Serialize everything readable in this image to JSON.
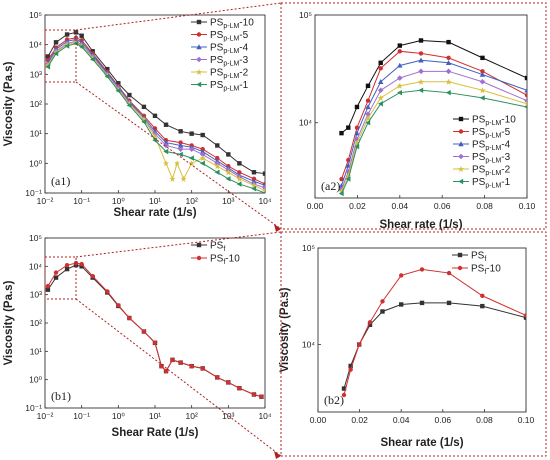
{
  "chart_data": [
    {
      "panel": "a1",
      "panel_label": "(a1)",
      "type": "line",
      "xscale": "log",
      "yscale": "log",
      "xlim": [
        0.01,
        10000
      ],
      "ylim": [
        0.1,
        100000
      ],
      "xlabel": "Shear rate (1/s)",
      "ylabel": "Viscosity (Pa.s)",
      "x_ticks": [
        "10⁻²",
        "10⁻¹",
        "10⁰",
        "10¹",
        "10²",
        "10³",
        "10⁴"
      ],
      "y_ticks": [
        "10⁻¹",
        "10⁰",
        "10¹",
        "10²",
        "10³",
        "10⁴",
        "10⁵"
      ],
      "legend": "top-right",
      "series": [
        {
          "name": "PS",
          "sub": "p-LM",
          "suffix": "-10",
          "color": "#333333",
          "marker": "square",
          "x": [
            0.012,
            0.02,
            0.04,
            0.07,
            0.1,
            0.2,
            0.5,
            1,
            2,
            5,
            10,
            20,
            50,
            100,
            200,
            500,
            1000,
            2000,
            5000,
            10000
          ],
          "y": [
            4000,
            12000,
            22000,
            26000,
            20000,
            6000,
            1500,
            500,
            200,
            80,
            40,
            20,
            12,
            10,
            9,
            4,
            2,
            1,
            0.5,
            0.45
          ]
        },
        {
          "name": "PS",
          "sub": "p-LM",
          "suffix": "-5",
          "color": "#d03030",
          "marker": "circle",
          "x": [
            0.012,
            0.02,
            0.04,
            0.07,
            0.1,
            0.2,
            0.5,
            1,
            2,
            5,
            10,
            20,
            50,
            100,
            200,
            500,
            1000,
            2000,
            5000,
            10000
          ],
          "y": [
            3000,
            8000,
            15000,
            17000,
            14000,
            5000,
            1200,
            400,
            130,
            40,
            15,
            6,
            5,
            4,
            3,
            1.5,
            0.8,
            0.5,
            0.3,
            0.2
          ]
        },
        {
          "name": "PS",
          "sub": "p-LM",
          "suffix": "-4",
          "color": "#4060c0",
          "marker": "triangle",
          "x": [
            0.012,
            0.02,
            0.04,
            0.07,
            0.1,
            0.2,
            0.5,
            1,
            2,
            5,
            10,
            20,
            50,
            100,
            200,
            500,
            1000,
            2000,
            5000,
            10000
          ],
          "y": [
            2500,
            7000,
            13000,
            15000,
            12000,
            4500,
            1100,
            380,
            120,
            35,
            12,
            5,
            4,
            3.5,
            2.5,
            1.2,
            0.7,
            0.4,
            0.25,
            0.18
          ]
        },
        {
          "name": "PS",
          "sub": "p-LM",
          "suffix": "-3",
          "color": "#a070d0",
          "marker": "diamond",
          "x": [
            0.012,
            0.02,
            0.04,
            0.07,
            0.1,
            0.2,
            0.5,
            1,
            2,
            5,
            10,
            20,
            50,
            100,
            200,
            500,
            1000,
            2000,
            5000,
            10000
          ],
          "y": [
            2200,
            6000,
            11000,
            13000,
            10000,
            4000,
            1000,
            350,
            110,
            30,
            10,
            4,
            3,
            3,
            2,
            1,
            0.6,
            0.35,
            0.2,
            0.15
          ]
        },
        {
          "name": "PS",
          "sub": "p-LM",
          "suffix": "-2",
          "color": "#d8c040",
          "marker": "star",
          "x": [
            0.012,
            0.02,
            0.04,
            0.07,
            0.1,
            0.2,
            0.5,
            1,
            2,
            5,
            10,
            20,
            30,
            40,
            60,
            100,
            200,
            500,
            1000,
            2000,
            5000,
            10000
          ],
          "y": [
            2000,
            5500,
            10000,
            12000,
            9000,
            3500,
            900,
            300,
            100,
            30,
            8,
            1,
            0.3,
            1,
            0.3,
            1,
            1.5,
            0.8,
            0.5,
            0.3,
            0.18,
            0.12
          ]
        },
        {
          "name": "PS",
          "sub": "p-LM",
          "suffix": "-1",
          "color": "#2a9060",
          "marker": "triangle-left",
          "x": [
            0.012,
            0.02,
            0.04,
            0.07,
            0.1,
            0.2,
            0.5,
            1,
            2,
            5,
            10,
            20,
            50,
            100,
            200,
            500,
            1000,
            2000,
            5000,
            10000
          ],
          "y": [
            1800,
            5000,
            9000,
            11000,
            8500,
            3200,
            850,
            280,
            90,
            25,
            6,
            2.5,
            2,
            1.5,
            1,
            0.5,
            0.3,
            0.2,
            0.14,
            0.1
          ]
        }
      ]
    },
    {
      "panel": "a2",
      "panel_label": "(a2)",
      "type": "line",
      "xscale": "linear",
      "yscale": "log",
      "xlim": [
        0.0,
        0.1
      ],
      "ylim": [
        2000,
        100000
      ],
      "xlabel": "Shear rate (1/s)",
      "ylabel": "",
      "x_ticks": [
        "0.00",
        "0.02",
        "0.04",
        "0.06",
        "0.08",
        "0.10"
      ],
      "y_ticks": [
        "10⁴",
        "10⁵"
      ],
      "legend": "bottom-right",
      "series": [
        {
          "name": "PS",
          "sub": "p-LM",
          "suffix": "-10",
          "color": "#111111",
          "marker": "square",
          "x": [
            0.0125,
            0.0157,
            0.0198,
            0.025,
            0.031,
            0.04,
            0.05,
            0.063,
            0.079,
            0.1
          ],
          "y": [
            8000,
            9000,
            14000,
            22000,
            36000,
            52000,
            58000,
            56000,
            40000,
            26000
          ]
        },
        {
          "name": "PS",
          "sub": "p-LM",
          "suffix": "-5",
          "color": "#d03030",
          "marker": "circle",
          "x": [
            0.0125,
            0.0157,
            0.0198,
            0.025,
            0.031,
            0.04,
            0.05,
            0.063,
            0.079,
            0.1
          ],
          "y": [
            3000,
            4500,
            9000,
            16000,
            32000,
            46000,
            44000,
            40000,
            30000,
            18000
          ]
        },
        {
          "name": "PS",
          "sub": "p-LM",
          "suffix": "-4",
          "color": "#4060c0",
          "marker": "triangle",
          "x": [
            0.0125,
            0.0157,
            0.0198,
            0.025,
            0.031,
            0.04,
            0.05,
            0.063,
            0.079,
            0.1
          ],
          "y": [
            2600,
            4000,
            8000,
            14000,
            24000,
            34000,
            38000,
            36000,
            28000,
            20000
          ]
        },
        {
          "name": "PS",
          "sub": "p-LM",
          "suffix": "-3",
          "color": "#a070d0",
          "marker": "diamond",
          "x": [
            0.0125,
            0.0157,
            0.0198,
            0.025,
            0.031,
            0.04,
            0.05,
            0.063,
            0.079,
            0.1
          ],
          "y": [
            2400,
            3500,
            7000,
            12000,
            20000,
            26000,
            30000,
            30000,
            24000,
            16000
          ]
        },
        {
          "name": "PS",
          "sub": "p-LM",
          "suffix": "-2",
          "color": "#d8c040",
          "marker": "star",
          "x": [
            0.0125,
            0.0157,
            0.0198,
            0.025,
            0.031,
            0.04,
            0.05,
            0.063,
            0.079,
            0.1
          ],
          "y": [
            2300,
            3200,
            6500,
            11000,
            17000,
            22000,
            24000,
            24000,
            20000,
            15000
          ]
        },
        {
          "name": "PS",
          "sub": "p-LM",
          "suffix": "-1",
          "color": "#2a9060",
          "marker": "triangle-left",
          "x": [
            0.0125,
            0.0157,
            0.0198,
            0.025,
            0.031,
            0.04,
            0.05,
            0.063,
            0.079,
            0.1
          ],
          "y": [
            2200,
            3000,
            6000,
            10000,
            15000,
            19000,
            20000,
            19000,
            17000,
            14000
          ]
        }
      ]
    },
    {
      "panel": "b1",
      "panel_label": "(b1)",
      "type": "line",
      "xscale": "log",
      "yscale": "log",
      "xlim": [
        0.01,
        10000
      ],
      "ylim": [
        0.1,
        100000
      ],
      "xlabel": "Shear Rate (1/s)",
      "ylabel": "Viscosity (Pa.s)",
      "x_ticks": [
        "10⁻²",
        "10⁻¹",
        "10⁰",
        "10¹",
        "10²",
        "10³",
        "10⁴"
      ],
      "y_ticks": [
        "10⁻¹",
        "10⁰",
        "10¹",
        "10²",
        "10³",
        "10⁴",
        "10⁵"
      ],
      "legend": "top-right",
      "series": [
        {
          "name": "PS",
          "sub": "f",
          "suffix": "",
          "color": "#333333",
          "marker": "square",
          "x": [
            0.012,
            0.02,
            0.04,
            0.07,
            0.1,
            0.2,
            0.5,
            1,
            2,
            5,
            10,
            15,
            20,
            30,
            50,
            100,
            200,
            500,
            1000,
            2000,
            5000,
            8000
          ],
          "y": [
            1500,
            4000,
            8000,
            11000,
            10000,
            4000,
            1200,
            400,
            150,
            50,
            20,
            3,
            2,
            5,
            4,
            3,
            2.5,
            1.2,
            0.8,
            0.5,
            0.3,
            0.25
          ]
        },
        {
          "name": "PS",
          "sub": "f",
          "suffix": "-10",
          "color": "#d03030",
          "marker": "circle",
          "x": [
            0.012,
            0.02,
            0.04,
            0.07,
            0.1,
            0.2,
            0.5,
            1,
            2,
            5,
            10,
            15,
            20,
            30,
            50,
            100,
            200,
            500,
            1000,
            2000,
            5000,
            8000
          ],
          "y": [
            2000,
            6000,
            11000,
            13000,
            12000,
            4500,
            1300,
            420,
            150,
            50,
            20,
            3,
            2,
            5,
            4,
            3,
            2.5,
            1.2,
            0.8,
            0.5,
            0.3,
            0.25
          ]
        }
      ]
    },
    {
      "panel": "b2",
      "panel_label": "(b2)",
      "type": "line",
      "xscale": "linear",
      "yscale": "log",
      "xlim": [
        0.0,
        0.1
      ],
      "ylim": [
        2000,
        100000
      ],
      "xlabel": "Shear rate (1/s)",
      "ylabel": "Viscosity (Pa.s)",
      "x_ticks": [
        "0.00",
        "0.02",
        "0.04",
        "0.06",
        "0.08",
        "0.10"
      ],
      "y_ticks": [
        "10⁴",
        "10⁵"
      ],
      "legend": "top-right",
      "series": [
        {
          "name": "PS",
          "sub": "f",
          "suffix": "",
          "color": "#333333",
          "marker": "square",
          "x": [
            0.0125,
            0.0157,
            0.0198,
            0.025,
            0.031,
            0.04,
            0.05,
            0.063,
            0.079,
            0.1
          ],
          "y": [
            3500,
            6000,
            10000,
            16000,
            22000,
            26000,
            27000,
            27000,
            25000,
            19000
          ]
        },
        {
          "name": "PS",
          "sub": "f",
          "suffix": "-10",
          "color": "#d03030",
          "marker": "circle",
          "x": [
            0.0125,
            0.0157,
            0.0198,
            0.025,
            0.031,
            0.04,
            0.05,
            0.063,
            0.079,
            0.1
          ],
          "y": [
            3000,
            5500,
            10000,
            17000,
            28000,
            52000,
            60000,
            55000,
            32000,
            20000
          ]
        }
      ]
    }
  ]
}
